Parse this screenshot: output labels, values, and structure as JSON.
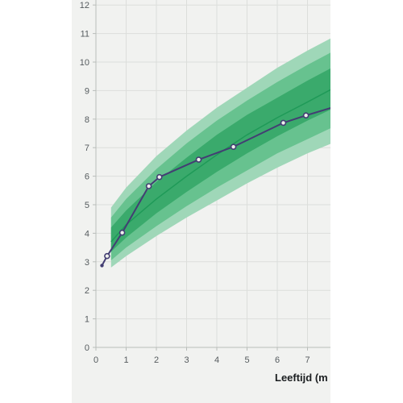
{
  "chart_data": {
    "type": "line",
    "title": "",
    "xlabel": "Leeftijd (m",
    "ylabel": "",
    "xlim": [
      0,
      7.8
    ],
    "ylim": [
      0,
      12.2
    ],
    "x_ticks": [
      "0",
      "1",
      "2",
      "3",
      "4",
      "5",
      "6",
      "7"
    ],
    "y_ticks": [
      "0",
      "1",
      "2",
      "3",
      "4",
      "5",
      "6",
      "7",
      "8",
      "9",
      "10",
      "11",
      "12"
    ],
    "grid": true,
    "colors": {
      "band_outer": "#9fd7b8",
      "band_middle": "#67c28f",
      "band_inner": "#3aaa6c",
      "median": "#1f9a58",
      "series": "#433e73",
      "axis": "#b9bdba",
      "grid": "#dcdedb"
    },
    "reference_bands": {
      "x": [
        0.5,
        1,
        2,
        3,
        4,
        5,
        6,
        7,
        7.8
      ],
      "p97": [
        4.9,
        5.6,
        6.7,
        7.6,
        8.4,
        9.1,
        9.8,
        10.4,
        10.85
      ],
      "p90": [
        4.55,
        5.2,
        6.25,
        7.15,
        7.95,
        8.65,
        9.3,
        9.9,
        10.35
      ],
      "p75": [
        4.2,
        4.8,
        5.8,
        6.65,
        7.45,
        8.15,
        8.75,
        9.35,
        9.8
      ],
      "p50": [
        3.7,
        4.3,
        5.2,
        6.0,
        6.75,
        7.45,
        8.05,
        8.6,
        9.05
      ],
      "p25": [
        3.35,
        3.85,
        4.7,
        5.45,
        6.15,
        6.8,
        7.4,
        7.95,
        8.35
      ],
      "p10": [
        3.05,
        3.5,
        4.25,
        4.95,
        5.6,
        6.2,
        6.8,
        7.3,
        7.7
      ],
      "p03": [
        2.8,
        3.2,
        3.9,
        4.55,
        5.15,
        5.75,
        6.3,
        6.8,
        7.15
      ]
    },
    "series": [
      {
        "x": [
          0.2,
          0.37,
          0.87,
          1.75,
          2.1,
          3.4,
          4.55,
          6.2,
          6.95,
          7.8
        ],
        "y": [
          2.87,
          3.2,
          4.02,
          5.65,
          5.97,
          6.58,
          7.03,
          7.87,
          8.13,
          8.4
        ],
        "markers": [
          false,
          true,
          true,
          true,
          true,
          true,
          true,
          true,
          true,
          false
        ]
      }
    ]
  }
}
